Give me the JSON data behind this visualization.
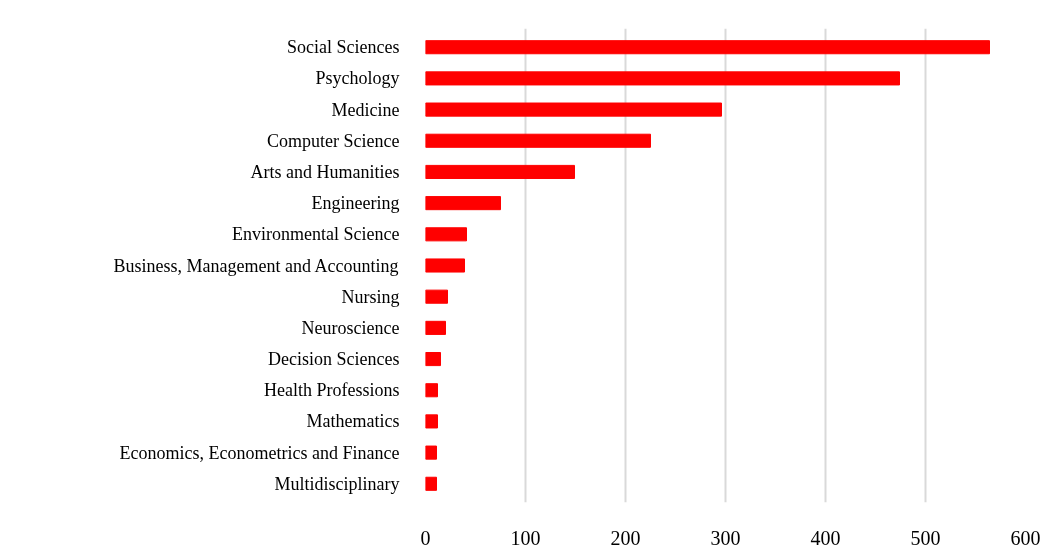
{
  "chart_data": {
    "type": "bar",
    "orientation": "horizontal",
    "categories": [
      "Social Sciences",
      "Psychology",
      "Medicine",
      "Computer Science",
      "Arts and Humanities",
      "Engineering",
      "Environmental Science",
      "Business, Management and Accounting",
      "Nursing",
      "Neuroscience",
      "Decision Sciences",
      "Health Professions",
      "Mathematics",
      "Economics, Econometrics and Finance",
      "Multidisciplinary"
    ],
    "values": [
      564,
      474,
      296,
      225,
      149,
      75,
      41,
      39,
      22,
      20,
      15,
      12,
      12,
      11,
      11
    ],
    "color": "#ff0000",
    "xlim": [
      0,
      600
    ],
    "xticks": [
      0,
      100,
      200,
      300,
      400,
      500,
      600
    ],
    "grid": "x"
  }
}
